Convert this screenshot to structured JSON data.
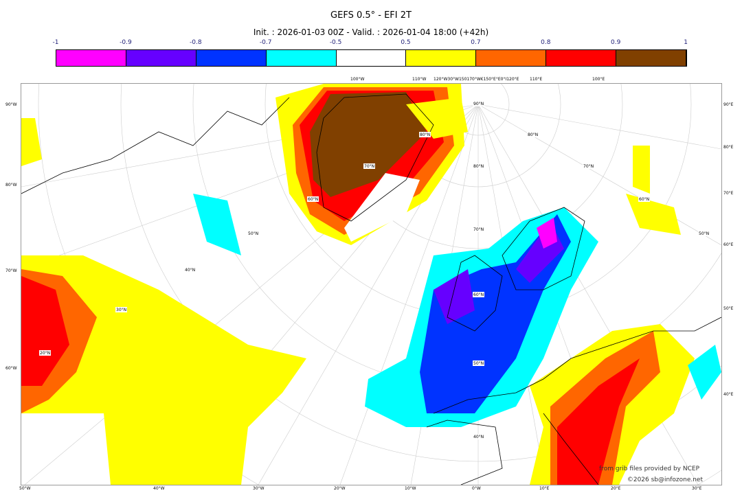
{
  "header": {
    "title": "GEFS 0.5° - EFI 2T",
    "subtitle": "Init. : 2026-01-03 00Z - Valid. : 2026-01-04 18:00 (+42h)"
  },
  "colorbar": {
    "ticks": [
      "-1",
      "-0.9",
      "-0.8",
      "-0.7",
      "-0.5",
      "0.5",
      "0.7",
      "0.8",
      "0.9",
      "1"
    ],
    "colors": [
      "#ff00ff",
      "#6600ff",
      "#0033ff",
      "#00ffff",
      "#ffffff",
      "#ffff00",
      "#ff6600",
      "#ff0000",
      "#804000"
    ]
  },
  "axes": {
    "left": [
      "90°W",
      "80°W",
      "70°W",
      "60°W"
    ],
    "right": [
      "90°E",
      "80°E",
      "70°E",
      "60°E",
      "50°E",
      "40°E"
    ],
    "bottom": [
      "50°W",
      "40°W",
      "30°W",
      "20°W",
      "10°W",
      "0°W",
      "10°E",
      "20°E",
      "30°E"
    ],
    "top": [
      "100°W",
      "110°W",
      "120°W30°W150170°W€150°E°E0°I120°E",
      "110°E",
      "100°E"
    ]
  },
  "grid_labels": [
    "90°N",
    "80°N",
    "80°N",
    "80°N",
    "70°N",
    "70°N",
    "70°N",
    "60°N",
    "60°N",
    "60°N",
    "50°N",
    "50°N",
    "50°N",
    "40°N",
    "40°N",
    "30°N",
    "20°N"
  ],
  "credits": {
    "line1": "from grib files provided by NCEP",
    "line2": "©2026 sb@infozone.net"
  }
}
